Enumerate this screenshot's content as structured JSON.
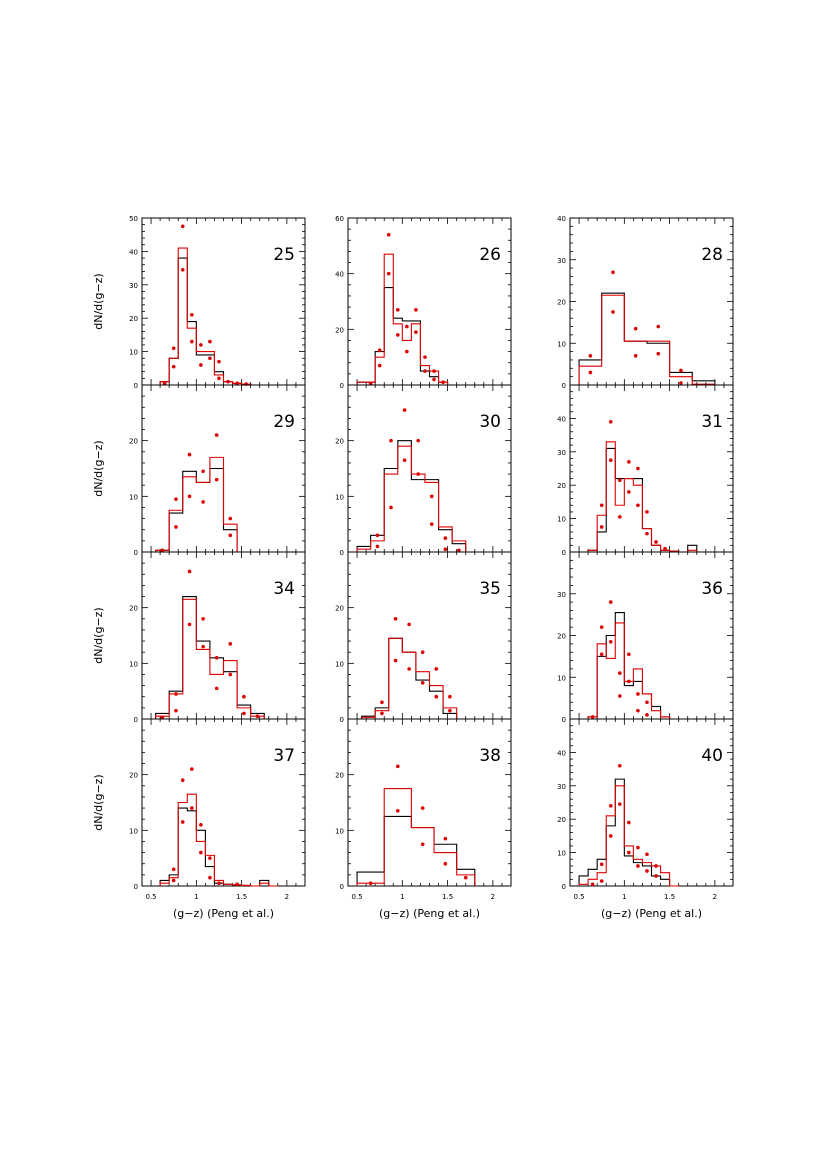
{
  "figure": {
    "x_axis_label": "(g−z) (Peng et al.)",
    "y_axis_label": "dN/d(g−z)",
    "x_ticks": [
      "0.5",
      "1",
      "1.5",
      "2"
    ],
    "colors": {
      "black_histogram": "#000000",
      "red_histogram": "#e00000",
      "red_points": "#e00000"
    }
  },
  "chart_data": [
    {
      "type": "histogram",
      "title": "25",
      "ylim": [
        0,
        50
      ],
      "yticks": [
        0,
        10,
        20,
        30,
        40,
        50
      ],
      "xlim": [
        0.4,
        2.2
      ],
      "bin_edges": [
        0.6,
        0.7,
        0.8,
        0.9,
        1.0,
        1.1,
        1.2,
        1.3,
        1.4,
        1.5,
        1.6,
        1.7,
        1.8
      ],
      "black_values": [
        1,
        8,
        38,
        19,
        9,
        9,
        4,
        1,
        0.5,
        0.2,
        0,
        0
      ],
      "red_values": [
        1,
        8,
        41,
        17,
        10,
        10,
        3,
        1,
        0.5,
        0.2,
        0,
        0
      ],
      "red_points": [
        [
          0.65,
          0.5
        ],
        [
          0.75,
          11
        ],
        [
          0.75,
          5.5
        ],
        [
          0.85,
          47.5
        ],
        [
          0.85,
          34.5
        ],
        [
          0.95,
          21
        ],
        [
          0.95,
          13
        ],
        [
          1.05,
          12
        ],
        [
          1.05,
          6
        ],
        [
          1.15,
          13
        ],
        [
          1.15,
          8
        ],
        [
          1.25,
          7
        ],
        [
          1.25,
          2
        ],
        [
          1.35,
          1
        ],
        [
          1.45,
          0.5
        ],
        [
          1.55,
          0.3
        ]
      ]
    },
    {
      "type": "histogram",
      "title": "26",
      "ylim": [
        0,
        60
      ],
      "yticks": [
        0,
        20,
        40,
        60
      ],
      "xlim": [
        0.4,
        2.2
      ],
      "bin_edges": [
        0.5,
        0.6,
        0.7,
        0.8,
        0.9,
        1.0,
        1.1,
        1.2,
        1.3,
        1.4,
        1.5,
        1.6,
        1.7,
        1.8
      ],
      "black_values": [
        1,
        1,
        12,
        35,
        24,
        23,
        23,
        5,
        3,
        1,
        0,
        0,
        0
      ],
      "red_values": [
        1,
        1,
        10,
        47,
        22,
        16,
        22,
        7,
        5,
        1,
        0,
        0,
        0
      ],
      "red_points": [
        [
          0.65,
          0.5
        ],
        [
          0.75,
          12.5
        ],
        [
          0.75,
          7
        ],
        [
          0.85,
          54
        ],
        [
          0.85,
          40
        ],
        [
          0.95,
          27
        ],
        [
          0.95,
          18
        ],
        [
          1.05,
          21
        ],
        [
          1.05,
          12
        ],
        [
          1.15,
          27
        ],
        [
          1.15,
          19
        ],
        [
          1.25,
          10
        ],
        [
          1.25,
          5
        ],
        [
          1.35,
          5
        ],
        [
          1.35,
          2
        ],
        [
          1.45,
          1
        ]
      ]
    },
    {
      "type": "histogram",
      "title": "28",
      "ylim": [
        0,
        40
      ],
      "yticks": [
        0,
        10,
        20,
        30,
        40
      ],
      "xlim": [
        0.4,
        2.2
      ],
      "bin_edges": [
        0.5,
        0.75,
        1.0,
        1.25,
        1.5,
        1.75,
        2.0
      ],
      "black_values": [
        6,
        22,
        10.5,
        10,
        3,
        1
      ],
      "red_values": [
        4.5,
        21.5,
        10.5,
        10.5,
        2,
        0.2
      ],
      "red_points": [
        [
          0.625,
          7
        ],
        [
          0.625,
          3
        ],
        [
          0.875,
          27
        ],
        [
          0.875,
          17.5
        ],
        [
          1.125,
          13.5
        ],
        [
          1.125,
          7
        ],
        [
          1.375,
          14
        ],
        [
          1.375,
          7.5
        ],
        [
          1.625,
          3.5
        ],
        [
          1.625,
          0.5
        ]
      ]
    },
    {
      "type": "histogram",
      "title": "29",
      "ylim": [
        0,
        30
      ],
      "yticks": [
        0,
        10,
        20
      ],
      "xlim": [
        0.4,
        2.2
      ],
      "bin_edges": [
        0.55,
        0.7,
        0.85,
        1.0,
        1.15,
        1.3,
        1.45,
        1.6
      ],
      "black_values": [
        0.3,
        7,
        14.5,
        12.5,
        15,
        4,
        0
      ],
      "red_values": [
        0.3,
        7.5,
        13.5,
        12.5,
        17,
        5,
        0
      ],
      "red_points": [
        [
          0.625,
          0.3
        ],
        [
          0.775,
          9.5
        ],
        [
          0.775,
          4.5
        ],
        [
          0.925,
          17.5
        ],
        [
          0.925,
          10
        ],
        [
          1.075,
          14.5
        ],
        [
          1.075,
          9
        ],
        [
          1.225,
          21
        ],
        [
          1.225,
          13
        ],
        [
          1.375,
          6
        ],
        [
          1.375,
          3
        ]
      ]
    },
    {
      "type": "histogram",
      "title": "30",
      "ylim": [
        0,
        30
      ],
      "yticks": [
        0,
        10,
        20
      ],
      "xlim": [
        0.4,
        2.2
      ],
      "bin_edges": [
        0.5,
        0.65,
        0.8,
        0.95,
        1.1,
        1.25,
        1.4,
        1.55,
        1.7
      ],
      "black_values": [
        1,
        3,
        15,
        20,
        13,
        13,
        4,
        1.5
      ],
      "red_values": [
        0.5,
        2,
        14,
        19,
        14,
        12.5,
        4.5,
        2
      ],
      "red_points": [
        [
          0.725,
          3
        ],
        [
          0.725,
          1
        ],
        [
          0.875,
          20
        ],
        [
          0.875,
          8
        ],
        [
          1.025,
          25.5
        ],
        [
          1.025,
          16.5
        ],
        [
          1.175,
          20
        ],
        [
          1.175,
          14
        ],
        [
          1.325,
          10
        ],
        [
          1.325,
          5
        ],
        [
          1.475,
          2.5
        ],
        [
          1.475,
          0.5
        ],
        [
          1.625,
          0.3
        ]
      ]
    },
    {
      "type": "histogram",
      "title": "31",
      "ylim": [
        0,
        50
      ],
      "yticks": [
        0,
        10,
        20,
        30,
        40
      ],
      "xlim": [
        0.4,
        2.2
      ],
      "bin_edges": [
        0.6,
        0.7,
        0.8,
        0.9,
        1.0,
        1.1,
        1.2,
        1.3,
        1.4,
        1.5,
        1.6,
        1.7,
        1.8,
        1.9
      ],
      "black_values": [
        0.5,
        6,
        31,
        22,
        22,
        22,
        7,
        2,
        0.5,
        0.3,
        0,
        2,
        0
      ],
      "red_values": [
        0.5,
        11,
        33,
        14,
        22,
        20,
        7,
        2,
        0.5,
        0.3,
        0,
        0.5,
        0
      ],
      "red_points": [
        [
          0.75,
          14
        ],
        [
          0.75,
          7.5
        ],
        [
          0.85,
          39
        ],
        [
          0.85,
          27.5
        ],
        [
          0.95,
          21.5
        ],
        [
          0.95,
          10.5
        ],
        [
          1.05,
          27
        ],
        [
          1.05,
          18
        ],
        [
          1.15,
          25
        ],
        [
          1.15,
          14
        ],
        [
          1.25,
          12
        ],
        [
          1.25,
          5.5
        ],
        [
          1.35,
          3
        ],
        [
          1.45,
          1
        ]
      ]
    },
    {
      "type": "histogram",
      "title": "34",
      "ylim": [
        0,
        30
      ],
      "yticks": [
        0,
        10,
        20
      ],
      "xlim": [
        0.4,
        2.2
      ],
      "bin_edges": [
        0.55,
        0.7,
        0.85,
        1.0,
        1.15,
        1.3,
        1.45,
        1.6,
        1.75
      ],
      "black_values": [
        1,
        5,
        22,
        14,
        11,
        8.5,
        2.5,
        1
      ],
      "red_values": [
        0.5,
        4.5,
        21.5,
        12.5,
        8,
        10.5,
        2,
        0.5
      ],
      "red_points": [
        [
          0.625,
          0.3
        ],
        [
          0.775,
          4.5
        ],
        [
          0.775,
          1.5
        ],
        [
          0.925,
          26.5
        ],
        [
          0.925,
          17
        ],
        [
          1.075,
          18
        ],
        [
          1.075,
          13
        ],
        [
          1.225,
          11
        ],
        [
          1.225,
          5.5
        ],
        [
          1.375,
          13.5
        ],
        [
          1.375,
          8
        ],
        [
          1.525,
          4
        ],
        [
          1.525,
          1
        ],
        [
          1.675,
          0.5
        ]
      ]
    },
    {
      "type": "histogram",
      "title": "35",
      "ylim": [
        0,
        30
      ],
      "yticks": [
        0,
        10,
        20
      ],
      "xlim": [
        0.4,
        2.2
      ],
      "bin_edges": [
        0.55,
        0.7,
        0.85,
        1.0,
        1.15,
        1.3,
        1.45,
        1.6
      ],
      "black_values": [
        0.5,
        2,
        14.5,
        12,
        7,
        5,
        1
      ],
      "red_values": [
        0.3,
        1.5,
        14.5,
        12,
        8.5,
        6,
        2
      ],
      "red_points": [
        [
          0.775,
          3
        ],
        [
          0.775,
          1
        ],
        [
          0.925,
          18
        ],
        [
          0.925,
          10.5
        ],
        [
          1.075,
          17
        ],
        [
          1.075,
          9
        ],
        [
          1.225,
          12
        ],
        [
          1.225,
          6.5
        ],
        [
          1.375,
          9
        ],
        [
          1.375,
          4
        ],
        [
          1.525,
          4
        ],
        [
          1.525,
          1.5
        ]
      ]
    },
    {
      "type": "histogram",
      "title": "36",
      "ylim": [
        0,
        40
      ],
      "yticks": [
        0,
        10,
        20,
        30
      ],
      "xlim": [
        0.4,
        2.2
      ],
      "bin_edges": [
        0.6,
        0.7,
        0.8,
        0.9,
        1.0,
        1.1,
        1.2,
        1.3,
        1.4,
        1.5,
        1.6
      ],
      "black_values": [
        0.5,
        15,
        20,
        25.5,
        8,
        9,
        6,
        3,
        0.5,
        0
      ],
      "red_values": [
        0.5,
        18,
        14.5,
        23,
        9,
        12,
        6,
        2,
        0.5,
        0
      ],
      "red_points": [
        [
          0.65,
          0.5
        ],
        [
          0.75,
          22
        ],
        [
          0.75,
          15.5
        ],
        [
          0.85,
          28
        ],
        [
          0.85,
          18.5
        ],
        [
          0.95,
          11
        ],
        [
          0.95,
          5.5
        ],
        [
          1.05,
          15.5
        ],
        [
          1.05,
          9
        ],
        [
          1.15,
          6
        ],
        [
          1.15,
          2
        ],
        [
          1.25,
          4
        ],
        [
          1.25,
          1
        ]
      ]
    },
    {
      "type": "histogram",
      "title": "37",
      "ylim": [
        0,
        30
      ],
      "yticks": [
        0,
        10,
        20
      ],
      "xlim": [
        0.4,
        2.2
      ],
      "bin_edges": [
        0.6,
        0.7,
        0.8,
        0.9,
        1.0,
        1.1,
        1.2,
        1.3,
        1.4,
        1.5,
        1.6,
        1.7,
        1.8,
        1.9
      ],
      "black_values": [
        1,
        2,
        14,
        13.5,
        10,
        3.5,
        0.5,
        0.3,
        0.2,
        0.1,
        0,
        1,
        0
      ],
      "red_values": [
        0.5,
        1.5,
        15,
        16.5,
        8,
        5.5,
        1,
        0.3,
        0.2,
        0.1,
        0,
        0.5,
        0
      ],
      "red_points": [
        [
          0.75,
          3
        ],
        [
          0.75,
          1
        ],
        [
          0.85,
          19
        ],
        [
          0.85,
          11.5
        ],
        [
          0.95,
          21
        ],
        [
          0.95,
          14
        ],
        [
          1.05,
          11
        ],
        [
          1.05,
          6
        ],
        [
          1.15,
          5
        ],
        [
          1.15,
          1.5
        ],
        [
          1.25,
          0.5
        ],
        [
          1.45,
          0.3
        ]
      ]
    },
    {
      "type": "histogram",
      "title": "38",
      "ylim": [
        0,
        30
      ],
      "yticks": [
        0,
        10,
        20
      ],
      "xlim": [
        0.4,
        2.2
      ],
      "bin_edges": [
        0.5,
        0.8,
        1.1,
        1.35,
        1.6,
        1.8
      ],
      "black_values": [
        2.5,
        12.5,
        10.5,
        7.5,
        3
      ],
      "red_values": [
        0.5,
        17.5,
        10.5,
        6,
        2
      ],
      "red_points": [
        [
          0.65,
          0.5
        ],
        [
          0.95,
          21.5
        ],
        [
          0.95,
          13.5
        ],
        [
          1.225,
          14
        ],
        [
          1.225,
          7.5
        ],
        [
          1.475,
          8.5
        ],
        [
          1.475,
          4
        ],
        [
          1.7,
          1.5
        ]
      ]
    },
    {
      "type": "histogram",
      "title": "40",
      "ylim": [
        0,
        50
      ],
      "yticks": [
        0,
        10,
        20,
        30,
        40
      ],
      "xlim": [
        0.4,
        2.2
      ],
      "bin_edges": [
        0.5,
        0.6,
        0.7,
        0.8,
        0.9,
        1.0,
        1.1,
        1.2,
        1.3,
        1.4,
        1.5,
        1.6
      ],
      "black_values": [
        3,
        5,
        8,
        18,
        32,
        9,
        7,
        6,
        3,
        2,
        0
      ],
      "red_values": [
        0.5,
        2,
        4,
        21,
        30,
        12,
        8,
        7,
        6,
        4,
        0
      ],
      "red_points": [
        [
          0.65,
          0.5
        ],
        [
          0.75,
          6.5
        ],
        [
          0.75,
          1.5
        ],
        [
          0.85,
          24
        ],
        [
          0.85,
          15
        ],
        [
          0.95,
          36
        ],
        [
          0.95,
          24.5
        ],
        [
          1.05,
          19
        ],
        [
          1.05,
          10
        ],
        [
          1.15,
          11.5
        ],
        [
          1.15,
          6
        ],
        [
          1.25,
          9.5
        ],
        [
          1.25,
          4.5
        ],
        [
          1.35,
          6
        ],
        [
          1.35,
          3
        ]
      ]
    }
  ]
}
